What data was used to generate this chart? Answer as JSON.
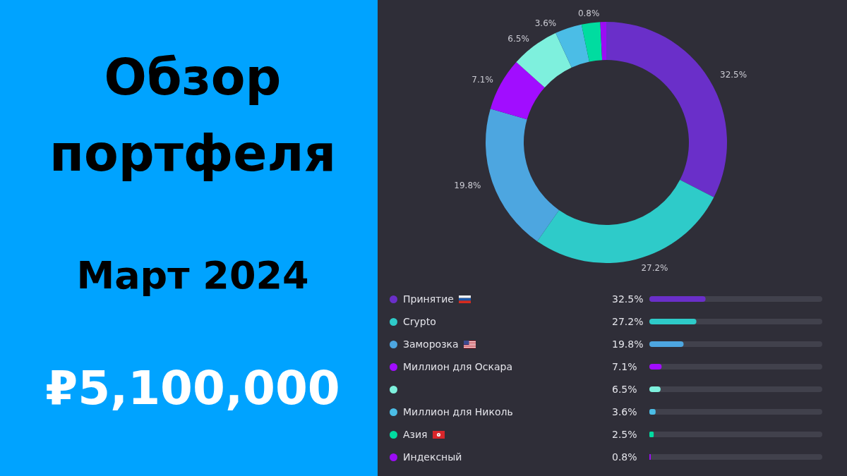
{
  "chart_data": [
    {
      "type": "donut",
      "title": "Обзор портфеля",
      "subtitle": "Март 2024",
      "annotations": [
        "₽5,100,000"
      ],
      "categories": [
        null,
        null,
        null,
        null,
        null,
        null,
        null,
        null
      ],
      "values": [
        32.5,
        27.2,
        19.8,
        7.1,
        6.5,
        3.6,
        2.5,
        0.8
      ],
      "colors": [
        "#6a2fc9",
        "#2ecbc9",
        "#4da6e0",
        "#a10dff",
        "#7ef0dd",
        "#4bbde6",
        "#00dca0",
        "#9b0cf5"
      ],
      "value_labels": [
        "32.5%",
        "27.2%",
        "19.8%",
        "7.1%",
        "6.5%",
        "3.6%",
        null,
        "0.8%"
      ]
    },
    {
      "type": "bar",
      "orientation": "horizontal",
      "categories": [
        "Принятие",
        "Crypto",
        "Заморозка",
        "Миллион для Оскара",
        null,
        "Миллион для Николь",
        "Азия",
        "Индексный"
      ],
      "values": [
        32.5,
        27.2,
        19.8,
        7.1,
        6.5,
        3.6,
        2.5,
        0.8
      ],
      "colors": [
        "#6a2fc9",
        "#2ecbc9",
        "#4da6e0",
        "#a10dff",
        "#7ef0dd",
        "#4bbde6",
        "#00dca0",
        "#9b0cf5"
      ],
      "value_labels": [
        "32.5%",
        "27.2%",
        "19.8%",
        "7.1%",
        "6.5%",
        "3.6%",
        "2.5%",
        "0.8%"
      ],
      "xlim": [
        0,
        100
      ],
      "tick_labels": "y"
    }
  ]
}
